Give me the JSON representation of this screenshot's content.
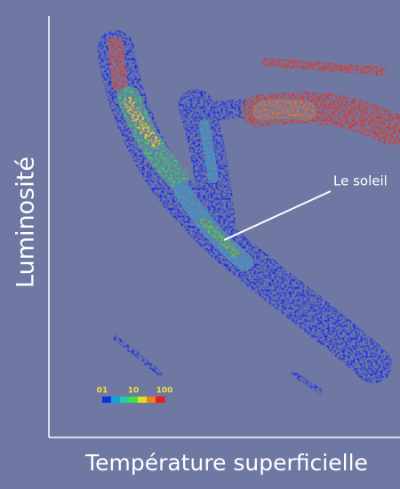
{
  "chart_data": {
    "type": "density",
    "xlabel": "Température superficielle",
    "ylabel": "Luminosité",
    "annotation": "Le soleil",
    "colorbar": {
      "log": true,
      "clim": [
        1,
        100
      ],
      "ticks": [
        {
          "value": 1,
          "label": "01"
        },
        10,
        100
      ],
      "colors": [
        "#1030e0",
        "#10a0e0",
        "#20d0a0",
        "#40e040",
        "#e0e020",
        "#f08020",
        "#e02020"
      ]
    }
  }
}
